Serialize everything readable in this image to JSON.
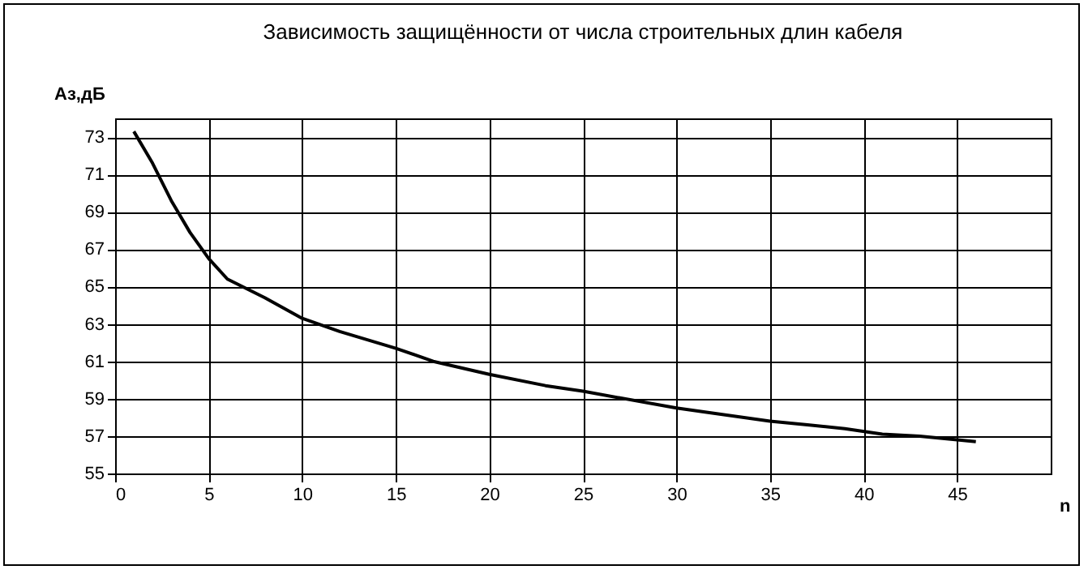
{
  "chart_data": {
    "type": "line",
    "title": "Зависимость защищённости от числа строительных длин кабеля",
    "xlabel": "n",
    "ylabel": "Аз,дБ",
    "x": [
      1,
      2,
      3,
      4,
      5,
      6,
      7,
      8,
      10,
      12,
      15,
      17,
      20,
      23,
      25,
      30,
      35,
      37,
      39,
      41,
      43,
      46
    ],
    "series": [
      {
        "color": "#000000",
        "values": [
          73.3,
          71.6,
          69.6,
          67.9,
          66.5,
          65.4,
          64.9,
          64.4,
          63.3,
          62.6,
          61.7,
          61.0,
          60.3,
          59.7,
          59.4,
          58.5,
          57.8,
          57.6,
          57.4,
          57.1,
          57.0,
          56.7
        ]
      }
    ],
    "xlim": [
      0,
      50
    ],
    "xticks": [
      0,
      5,
      10,
      15,
      20,
      25,
      30,
      35,
      40,
      45
    ],
    "ylim": [
      55,
      74
    ],
    "yticks": [
      55,
      57,
      59,
      61,
      63,
      65,
      67,
      69,
      71,
      73
    ],
    "grid": true,
    "legend": false,
    "marker": "none",
    "line_style": "solid"
  }
}
